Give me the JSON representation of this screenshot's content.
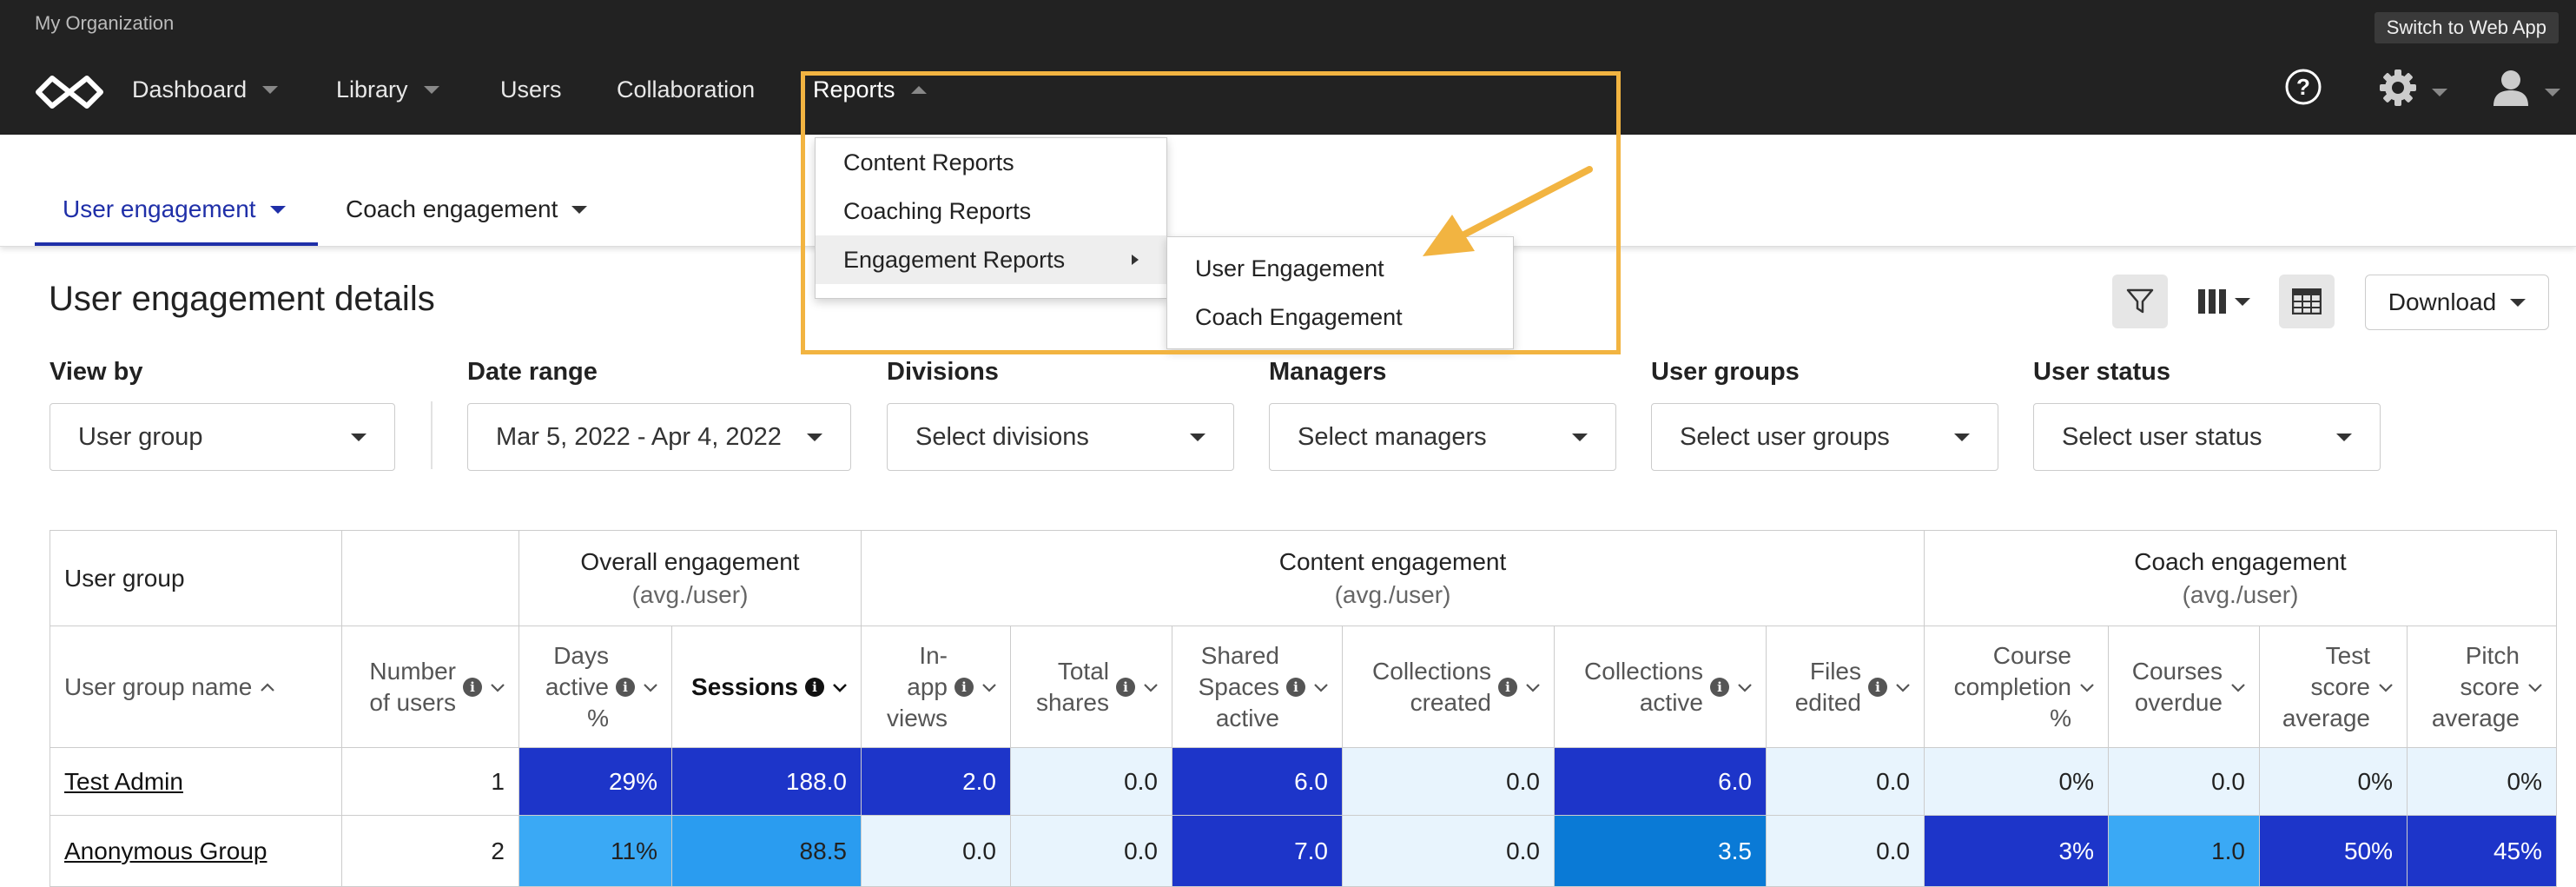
{
  "org_name": "My Organization",
  "switch_button": "Switch to Web App",
  "nav": {
    "dashboard": "Dashboard",
    "library": "Library",
    "users": "Users",
    "collaboration": "Collaboration",
    "reports": "Reports"
  },
  "icons": [
    "logo-icon",
    "help-icon",
    "gear-icon",
    "user-icon",
    "filter-icon",
    "columns-icon",
    "table-view-icon",
    "info-icon",
    "chevron-down-icon",
    "chevron-up-icon",
    "chevron-right-icon"
  ],
  "tabs": {
    "user_engagement": "User engagement",
    "coach_engagement": "Coach engagement"
  },
  "section_title": "User engagement details",
  "download_label": "Download",
  "filters": [
    {
      "label": "View by",
      "value": "User group"
    },
    {
      "label": "Date range",
      "value": "Mar 5, 2022 - Apr 4, 2022"
    },
    {
      "label": "Divisions",
      "value": "Select divisions"
    },
    {
      "label": "Managers",
      "value": "Select managers"
    },
    {
      "label": "User groups",
      "value": "Select user groups"
    },
    {
      "label": "User status",
      "value": "Select user status"
    }
  ],
  "table": {
    "group_headers": {
      "user_group": "User group",
      "overall": "Overall engagement",
      "content": "Content engagement",
      "coach": "Coach engagement",
      "avg": "(avg./user)"
    },
    "columns": [
      "User group name",
      "Number\nof users",
      "Days\nactive\n%",
      "Sessions",
      "In-\napp\nviews",
      "Total\nshares",
      "Shared\nSpaces\nactive",
      "Collections\ncreated",
      "Collections\nactive",
      "Files\nedited",
      "Course\ncompletion\n%",
      "Courses\noverdue",
      "Test\nscore\naverage",
      "Pitch\nscore\naverage"
    ],
    "rows": [
      {
        "cells": [
          "Test Admin",
          "1",
          "29%",
          "188.0",
          "2.0",
          "0.0",
          "6.0",
          "0.0",
          "6.0",
          "0.0",
          "0%",
          "0.0",
          "0%",
          "0%"
        ]
      },
      {
        "cells": [
          "Anonymous Group",
          "2",
          "11%",
          "88.5",
          "0.0",
          "0.0",
          "7.0",
          "0.0",
          "3.5",
          "0.0",
          "3%",
          "1.0",
          "50%",
          "45%"
        ]
      }
    ]
  },
  "reports_menu": {
    "items": [
      "Content Reports",
      "Coaching Reports",
      "Engagement Reports"
    ],
    "submenu": [
      "User Engagement",
      "Coach Engagement"
    ]
  },
  "colors": {
    "dark_blue": "#1d35c9",
    "mid_blue": "#0a7ad6",
    "light_blue": "#3aa9f5",
    "pale_blue": "#e8f4fd",
    "highlight": "#f2b441"
  }
}
